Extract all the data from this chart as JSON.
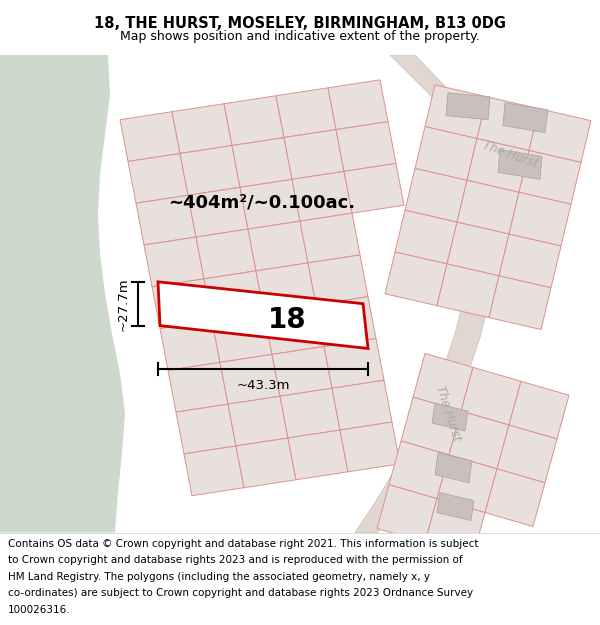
{
  "title": "18, THE HURST, MOSELEY, BIRMINGHAM, B13 0DG",
  "subtitle": "Map shows position and indicative extent of the property.",
  "footer_lines": [
    "Contains OS data © Crown copyright and database right 2021. This information is subject",
    "to Crown copyright and database rights 2023 and is reproduced with the permission of",
    "HM Land Registry. The polygons (including the associated geometry, namely x, y",
    "co-ordinates) are subject to Crown copyright and database rights 2023 Ordnance Survey",
    "100026316."
  ],
  "area_label": "~404m²/~0.100ac.",
  "width_label": "~43.3m",
  "height_label": "~27.7m",
  "property_number": "18",
  "map_bg": "#ede8e3",
  "green_color": "#ccd9cc",
  "road_fill": "#e0d8d0",
  "plot_fill": "#e8e0dc",
  "plot_edge": "#e09090",
  "building_fill": "#c8c0bc",
  "property_fill": "#ffffff",
  "property_edge": "#cc0000",
  "road_label_color": "#b0a8a0",
  "road_label2_color": "#b0a8a0"
}
